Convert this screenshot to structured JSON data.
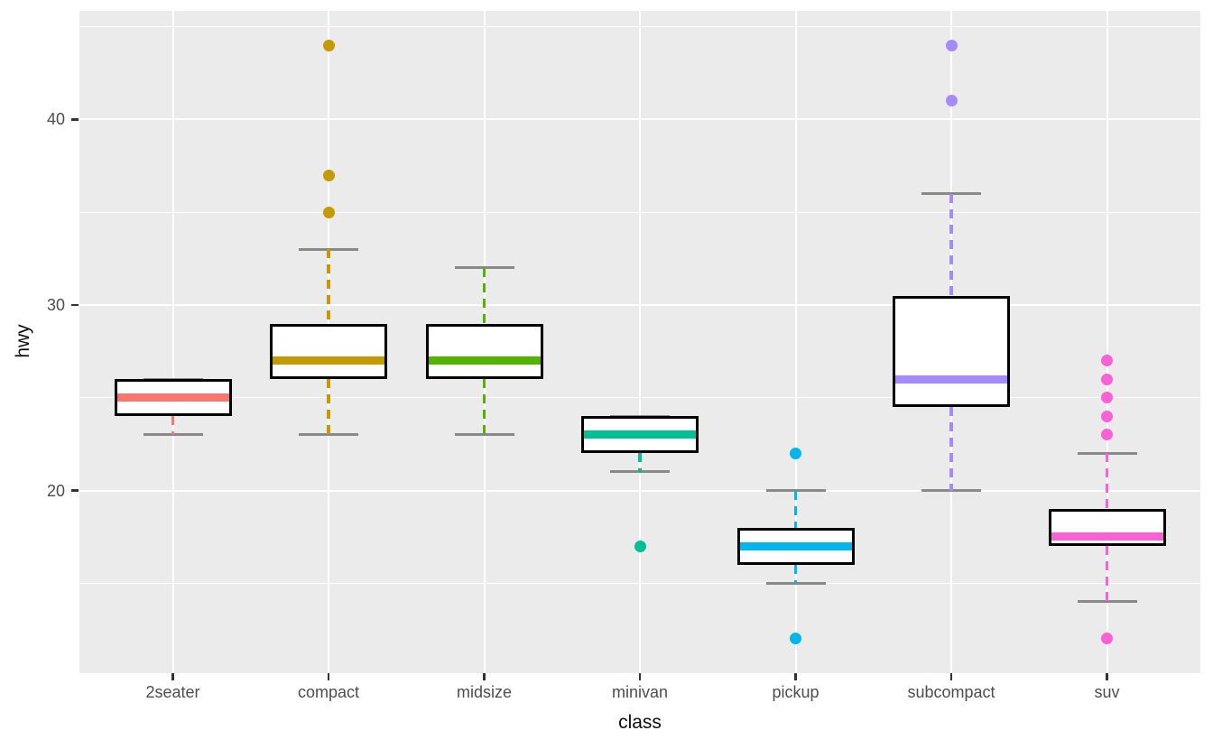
{
  "figure": {
    "background": "#FFFFFF",
    "panel_background": "#EBEBEB",
    "gridline_color": "#FFFFFF",
    "tick_label_color": "#4D4D4D",
    "tick_mark_color": "#333333",
    "axis_title_color": "#0d0d0d",
    "errorbar_color": "#898989",
    "box_outline_color": "#000000",
    "box_fill_color": "#FFFFFF"
  },
  "chart_data": {
    "type": "boxplot",
    "title": "",
    "xlabel": "class",
    "ylabel": "hwy",
    "categories": [
      "2seater",
      "compact",
      "midsize",
      "minivan",
      "pickup",
      "subcompact",
      "suv"
    ],
    "series": [
      {
        "name": "2seater",
        "color": "#F8766D",
        "whisker_low": 23,
        "q1": 24,
        "median": 25,
        "q3": 26,
        "whisker_high": 26,
        "outliers": []
      },
      {
        "name": "compact",
        "color": "#C49A00",
        "whisker_low": 23,
        "q1": 26,
        "median": 27,
        "q3": 29,
        "whisker_high": 33,
        "outliers": [
          35,
          37,
          44
        ]
      },
      {
        "name": "midsize",
        "color": "#53B400",
        "whisker_low": 23,
        "q1": 26,
        "median": 27,
        "q3": 29,
        "whisker_high": 32,
        "outliers": []
      },
      {
        "name": "minivan",
        "color": "#00C094",
        "whisker_low": 21,
        "q1": 22,
        "median": 23,
        "q3": 24,
        "whisker_high": 24,
        "outliers": [
          17
        ]
      },
      {
        "name": "pickup",
        "color": "#00B6EB",
        "whisker_low": 15,
        "q1": 16,
        "median": 17,
        "q3": 18,
        "whisker_high": 20,
        "outliers": [
          22,
          12
        ]
      },
      {
        "name": "subcompact",
        "color": "#A58AFF",
        "whisker_low": 20,
        "q1": 24.5,
        "median": 26,
        "q3": 30.5,
        "whisker_high": 36,
        "outliers": [
          44,
          41
        ]
      },
      {
        "name": "suv",
        "color": "#FB61D7",
        "whisker_low": 14,
        "q1": 17,
        "median": 17.5,
        "q3": 19,
        "whisker_high": 22,
        "outliers": [
          27,
          26,
          25,
          24,
          23,
          12
        ]
      }
    ],
    "y_ticks": [
      20,
      30,
      40
    ],
    "y_minor_ticks": [
      15,
      25,
      35,
      45
    ],
    "ylim": [
      10.15,
      45.86
    ],
    "grid": true,
    "legend": false
  }
}
